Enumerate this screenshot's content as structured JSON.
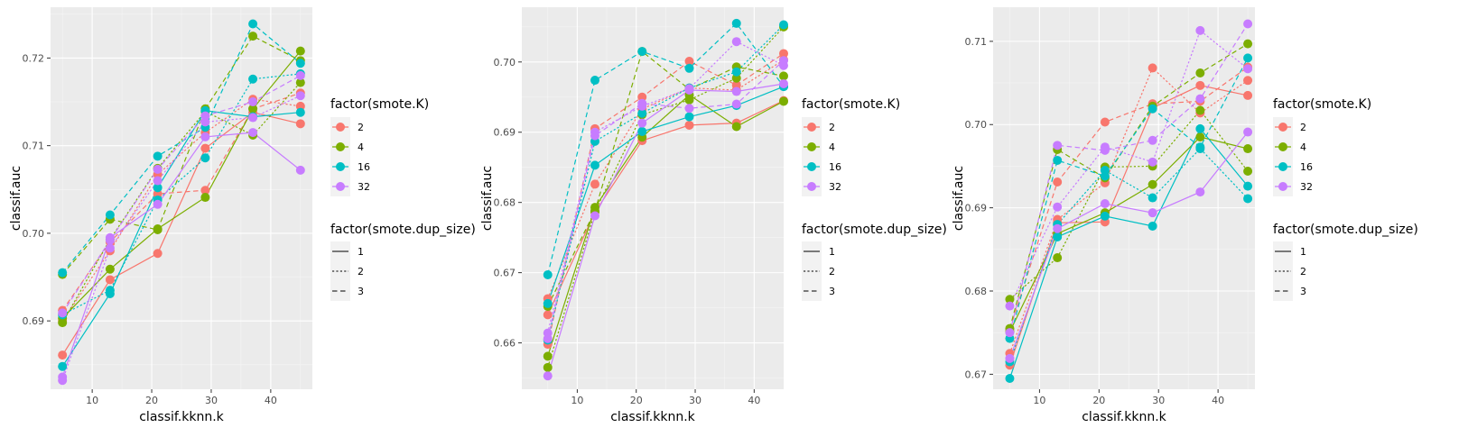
{
  "colors": {
    "2": "#F8766D",
    "4": "#7CAE00",
    "16": "#00BFC4",
    "32": "#C77CFF"
  },
  "legend": {
    "color_title": "factor(smote.K)",
    "color_entries": [
      "2",
      "4",
      "16",
      "32"
    ],
    "linetype_title": "factor(smote.dup_size)",
    "linetype_entries": [
      "1",
      "2",
      "3"
    ]
  },
  "chart_data": [
    {
      "type": "line",
      "xlabel": "classif.kknn.k",
      "ylabel": "classif.auc",
      "x": [
        5,
        13,
        21,
        29,
        37,
        45
      ],
      "xticks": [
        10,
        20,
        30,
        40
      ],
      "xlim": [
        3.0,
        47.0
      ],
      "yticks": [
        0.69,
        0.7,
        0.71,
        0.72
      ],
      "ylim": [
        0.6822,
        0.7258
      ],
      "series": [
        {
          "k": "2",
          "dup": "1",
          "values": [
            0.6861,
            0.6947,
            0.6977,
            0.7097,
            0.7138,
            0.7125
          ]
        },
        {
          "k": "2",
          "dup": "2",
          "values": [
            0.69,
            0.698,
            0.7067,
            0.7115,
            0.7153,
            0.7145
          ]
        },
        {
          "k": "2",
          "dup": "3",
          "values": [
            0.6912,
            0.699,
            0.7045,
            0.7049,
            0.7142,
            0.716
          ]
        },
        {
          "k": "4",
          "dup": "1",
          "values": [
            0.6903,
            0.6959,
            0.7005,
            0.7041,
            0.7142,
            0.7208
          ]
        },
        {
          "k": "4",
          "dup": "2",
          "values": [
            0.6898,
            0.6993,
            0.7074,
            0.7139,
            0.7112,
            0.7172
          ]
        },
        {
          "k": "4",
          "dup": "3",
          "values": [
            0.6953,
            0.7016,
            0.7004,
            0.7142,
            0.7225,
            0.7197
          ]
        },
        {
          "k": "16",
          "dup": "1",
          "values": [
            0.6848,
            0.6931,
            0.7052,
            0.714,
            0.7133,
            0.7138
          ]
        },
        {
          "k": "16",
          "dup": "2",
          "values": [
            0.6907,
            0.6935,
            0.7038,
            0.7086,
            0.7176,
            0.7182
          ]
        },
        {
          "k": "16",
          "dup": "3",
          "values": [
            0.6955,
            0.7021,
            0.7088,
            0.7121,
            0.7239,
            0.7194
          ]
        },
        {
          "k": "32",
          "dup": "1",
          "values": [
            0.6836,
            0.6995,
            0.7033,
            0.711,
            0.7115,
            0.7072
          ]
        },
        {
          "k": "32",
          "dup": "2",
          "values": [
            0.6832,
            0.6983,
            0.706,
            0.7127,
            0.7132,
            0.7157
          ]
        },
        {
          "k": "32",
          "dup": "3",
          "values": [
            0.6909,
            0.6992,
            0.7073,
            0.7134,
            0.715,
            0.718
          ]
        }
      ]
    },
    {
      "type": "line",
      "xlabel": "classif.kknn.k",
      "ylabel": "classif.auc",
      "x": [
        5,
        13,
        21,
        29,
        37,
        45
      ],
      "xticks": [
        10,
        20,
        30,
        40
      ],
      "xlim": [
        0.6,
        45.0
      ],
      "yticks": [
        0.66,
        0.67,
        0.68,
        0.69,
        0.7
      ],
      "ylim": [
        0.6534,
        0.7078
      ],
      "series": [
        {
          "k": "2",
          "dup": "1",
          "values": [
            0.664,
            0.6786,
            0.6888,
            0.691,
            0.6913,
            0.6945
          ]
        },
        {
          "k": "2",
          "dup": "2",
          "values": [
            0.6663,
            0.6826,
            0.6933,
            0.6963,
            0.696,
            0.7003
          ]
        },
        {
          "k": "2",
          "dup": "3",
          "values": [
            0.6598,
            0.6905,
            0.695,
            0.7001,
            0.6967,
            0.7012
          ]
        },
        {
          "k": "4",
          "dup": "1",
          "values": [
            0.6581,
            0.6793,
            0.6893,
            0.6953,
            0.6908,
            0.6944
          ]
        },
        {
          "k": "4",
          "dup": "2",
          "values": [
            0.6565,
            0.6787,
            0.6925,
            0.6946,
            0.6977,
            0.705
          ]
        },
        {
          "k": "4",
          "dup": "3",
          "values": [
            0.6652,
            0.6788,
            0.7015,
            0.6961,
            0.6993,
            0.698
          ]
        },
        {
          "k": "16",
          "dup": "1",
          "values": [
            0.6656,
            0.6853,
            0.6901,
            0.6922,
            0.6938,
            0.6965
          ]
        },
        {
          "k": "16",
          "dup": "2",
          "values": [
            0.6604,
            0.6887,
            0.6927,
            0.6963,
            0.6986,
            0.7053
          ]
        },
        {
          "k": "16",
          "dup": "3",
          "values": [
            0.6697,
            0.6974,
            0.7015,
            0.6991,
            0.7055,
            0.6965
          ]
        },
        {
          "k": "32",
          "dup": "1",
          "values": [
            0.6553,
            0.6781,
            0.6913,
            0.696,
            0.6958,
            0.6969
          ]
        },
        {
          "k": "32",
          "dup": "2",
          "values": [
            0.6614,
            0.69,
            0.6937,
            0.6962,
            0.7029,
            0.6995
          ]
        },
        {
          "k": "32",
          "dup": "3",
          "values": [
            0.6606,
            0.6895,
            0.6941,
            0.6934,
            0.694,
            0.7002
          ]
        }
      ]
    },
    {
      "type": "line",
      "xlabel": "classif.kknn.k",
      "ylabel": "classif.auc",
      "x": [
        5,
        13,
        21,
        29,
        37,
        45
      ],
      "xticks": [
        10,
        20,
        30,
        40
      ],
      "xlim": [
        2.2,
        46.2
      ],
      "yticks": [
        0.67,
        0.68,
        0.69,
        0.7,
        0.71
      ],
      "ylim": [
        0.6682,
        0.7141
      ],
      "series": [
        {
          "k": "2",
          "dup": "1",
          "values": [
            0.6711,
            0.6882,
            0.6883,
            0.702,
            0.7047,
            0.7035
          ]
        },
        {
          "k": "2",
          "dup": "2",
          "values": [
            0.6725,
            0.6886,
            0.693,
            0.7068,
            0.7014,
            0.7053
          ]
        },
        {
          "k": "2",
          "dup": "3",
          "values": [
            0.6754,
            0.6931,
            0.7003,
            0.7025,
            0.7028,
            0.7069
          ]
        },
        {
          "k": "4",
          "dup": "1",
          "values": [
            0.6751,
            0.6869,
            0.6894,
            0.6928,
            0.6985,
            0.6971
          ]
        },
        {
          "k": "4",
          "dup": "2",
          "values": [
            0.679,
            0.684,
            0.6949,
            0.695,
            0.7017,
            0.6944
          ]
        },
        {
          "k": "4",
          "dup": "3",
          "values": [
            0.6755,
            0.697,
            0.6936,
            0.7022,
            0.7062,
            0.7097
          ]
        },
        {
          "k": "16",
          "dup": "1",
          "values": [
            0.6695,
            0.6865,
            0.689,
            0.6878,
            0.6995,
            0.6926
          ]
        },
        {
          "k": "16",
          "dup": "2",
          "values": [
            0.6715,
            0.688,
            0.6945,
            0.6912,
            0.6971,
            0.6911
          ]
        },
        {
          "k": "16",
          "dup": "3",
          "values": [
            0.6743,
            0.6957,
            0.6938,
            0.7019,
            0.6973,
            0.708
          ]
        },
        {
          "k": "32",
          "dup": "1",
          "values": [
            0.6719,
            0.6875,
            0.6905,
            0.6894,
            0.6919,
            0.6991
          ]
        },
        {
          "k": "32",
          "dup": "2",
          "values": [
            0.6782,
            0.6901,
            0.6973,
            0.6955,
            0.7113,
            0.7067
          ]
        },
        {
          "k": "32",
          "dup": "3",
          "values": [
            0.675,
            0.6975,
            0.6969,
            0.6981,
            0.7031,
            0.7121
          ]
        }
      ]
    }
  ]
}
